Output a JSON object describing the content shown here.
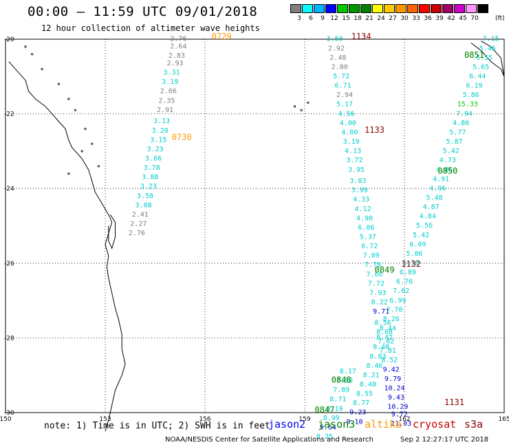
{
  "header": {
    "title": "00:00 – 11:59 UTC 09/01/2018",
    "subtitle": "12 hour collection of altimeter wave heights"
  },
  "legend": {
    "unit": "(ft)",
    "bins": [
      {
        "label": "3",
        "color": "#7f7f7f"
      },
      {
        "label": "6",
        "color": "#00ffff"
      },
      {
        "label": "9",
        "color": "#00b4ff"
      },
      {
        "label": "12",
        "color": "#0000ff"
      },
      {
        "label": "15",
        "color": "#00c800"
      },
      {
        "label": "18",
        "color": "#009600"
      },
      {
        "label": "21",
        "color": "#008000"
      },
      {
        "label": "24",
        "color": "#ffff00"
      },
      {
        "label": "27",
        "color": "#ffc800"
      },
      {
        "label": "30",
        "color": "#ff9600"
      },
      {
        "label": "33",
        "color": "#ff6400"
      },
      {
        "label": "36",
        "color": "#ff0000"
      },
      {
        "label": "39",
        "color": "#c80000"
      },
      {
        "label": "42",
        "color": "#a00064"
      },
      {
        "label": "45",
        "color": "#c800c8"
      },
      {
        "label": "70",
        "color": "#ff96ff"
      },
      {
        "label": "",
        "color": "#000000"
      }
    ]
  },
  "map": {
    "lon_ticks": [
      "150",
      "153",
      "156",
      "159",
      "162",
      "165"
    ],
    "lat_ticks": [
      "-20",
      "-22",
      "-24",
      "-26",
      "-28",
      "-30"
    ],
    "time_labels": [
      {
        "text": "0729",
        "lon": 156.5,
        "lat": -20.0,
        "color": "#ff9600"
      },
      {
        "text": "0730",
        "lon": 155.3,
        "lat": -22.7,
        "color": "#ff9600"
      },
      {
        "text": "1134",
        "lon": 160.7,
        "lat": -20.0,
        "color": "#8b0000"
      },
      {
        "text": "1133",
        "lon": 161.1,
        "lat": -22.5,
        "color": "#8b0000"
      },
      {
        "text": "1132",
        "lon": 162.2,
        "lat": -26.1,
        "color": "#8b0000"
      },
      {
        "text": "1131",
        "lon": 163.5,
        "lat": -29.8,
        "color": "#8b0000"
      },
      {
        "text": "0851",
        "lon": 164.1,
        "lat": -20.5,
        "color": "#008000"
      },
      {
        "text": "0850",
        "lon": 163.3,
        "lat": -23.6,
        "color": "#008000"
      },
      {
        "text": "0849",
        "lon": 161.4,
        "lat": -26.25,
        "color": "#008000"
      },
      {
        "text": "0848",
        "lon": 160.1,
        "lat": -29.2,
        "color": "#008000"
      },
      {
        "text": "0847",
        "lon": 159.6,
        "lat": -30.0,
        "color": "#008000"
      }
    ],
    "tracks": [
      {
        "satellite": "altika",
        "points": [
          {
            "lon": 155.2,
            "lat": -20.05,
            "v": "2.76",
            "c": "#7f7f7f"
          },
          {
            "lon": 155.2,
            "lat": -20.25,
            "v": "2.64",
            "c": "#7f7f7f"
          },
          {
            "lon": 155.15,
            "lat": -20.5,
            "v": "2.83",
            "c": "#7f7f7f"
          },
          {
            "lon": 155.1,
            "lat": -20.7,
            "v": "2.93",
            "c": "#7f7f7f"
          },
          {
            "lon": 155.0,
            "lat": -20.95,
            "v": "3.31",
            "c": "#00cccc"
          },
          {
            "lon": 154.95,
            "lat": -21.2,
            "v": "3.19",
            "c": "#00cccc"
          },
          {
            "lon": 154.9,
            "lat": -21.45,
            "v": "2.66",
            "c": "#7f7f7f"
          },
          {
            "lon": 154.85,
            "lat": -21.7,
            "v": "2.35",
            "c": "#7f7f7f"
          },
          {
            "lon": 154.8,
            "lat": -21.95,
            "v": "2.91",
            "c": "#7f7f7f"
          },
          {
            "lon": 154.7,
            "lat": -22.25,
            "v": "3.13",
            "c": "#00cccc"
          },
          {
            "lon": 154.65,
            "lat": -22.5,
            "v": "3.20",
            "c": "#00cccc"
          },
          {
            "lon": 154.6,
            "lat": -22.75,
            "v": "3.15",
            "c": "#00cccc"
          },
          {
            "lon": 154.5,
            "lat": -23.0,
            "v": "3.23",
            "c": "#00cccc"
          },
          {
            "lon": 154.45,
            "lat": -23.25,
            "v": "3.66",
            "c": "#00cccc"
          },
          {
            "lon": 154.4,
            "lat": -23.5,
            "v": "3.78",
            "c": "#00cccc"
          },
          {
            "lon": 154.35,
            "lat": -23.75,
            "v": "3.88",
            "c": "#00cccc"
          },
          {
            "lon": 154.3,
            "lat": -24.0,
            "v": "3.23",
            "c": "#00cccc"
          },
          {
            "lon": 154.2,
            "lat": -24.25,
            "v": "3.58",
            "c": "#00cccc"
          },
          {
            "lon": 154.15,
            "lat": -24.5,
            "v": "3.08",
            "c": "#00cccc"
          },
          {
            "lon": 154.05,
            "lat": -24.75,
            "v": "2.41",
            "c": "#7f7f7f"
          },
          {
            "lon": 154.0,
            "lat": -25.0,
            "v": "2.27",
            "c": "#7f7f7f"
          },
          {
            "lon": 153.95,
            "lat": -25.25,
            "v": "2.76",
            "c": "#7f7f7f"
          }
        ]
      },
      {
        "satellite": "cryosat",
        "points": [
          {
            "lon": 159.9,
            "lat": -20.05,
            "v": "3.50",
            "c": "#00cccc"
          },
          {
            "lon": 159.95,
            "lat": -20.3,
            "v": "2.92",
            "c": "#7f7f7f"
          },
          {
            "lon": 160.0,
            "lat": -20.55,
            "v": "2.48",
            "c": "#7f7f7f"
          },
          {
            "lon": 160.05,
            "lat": -20.8,
            "v": "2.80",
            "c": "#7f7f7f"
          },
          {
            "lon": 160.1,
            "lat": -21.05,
            "v": "5.72",
            "c": "#00cccc"
          },
          {
            "lon": 160.15,
            "lat": -21.3,
            "v": "6.71",
            "c": "#00cccc"
          },
          {
            "lon": 160.2,
            "lat": -21.55,
            "v": "2.94",
            "c": "#7f7f7f"
          },
          {
            "lon": 160.2,
            "lat": -21.8,
            "v": "5.17",
            "c": "#00cccc"
          },
          {
            "lon": 160.25,
            "lat": -22.05,
            "v": "4.56",
            "c": "#00cccc"
          },
          {
            "lon": 160.3,
            "lat": -22.3,
            "v": "4.00",
            "c": "#00cccc"
          },
          {
            "lon": 160.35,
            "lat": -22.55,
            "v": "4.00",
            "c": "#00cccc"
          },
          {
            "lon": 160.4,
            "lat": -22.8,
            "v": "3.19",
            "c": "#00cccc"
          },
          {
            "lon": 160.45,
            "lat": -23.05,
            "v": "4.13",
            "c": "#00cccc"
          },
          {
            "lon": 160.5,
            "lat": -23.3,
            "v": "3.72",
            "c": "#00cccc"
          },
          {
            "lon": 160.55,
            "lat": -23.55,
            "v": "3.95",
            "c": "#00cccc"
          },
          {
            "lon": 160.6,
            "lat": -23.85,
            "v": "3.83",
            "c": "#00cccc"
          },
          {
            "lon": 160.65,
            "lat": -24.1,
            "v": "3.99",
            "c": "#00cccc"
          },
          {
            "lon": 160.7,
            "lat": -24.35,
            "v": "4.33",
            "c": "#00cccc"
          },
          {
            "lon": 160.75,
            "lat": -24.6,
            "v": "4.12",
            "c": "#00cccc"
          },
          {
            "lon": 160.8,
            "lat": -24.85,
            "v": "4.90",
            "c": "#00cccc"
          },
          {
            "lon": 160.85,
            "lat": -25.1,
            "v": "6.06",
            "c": "#00cccc"
          },
          {
            "lon": 160.9,
            "lat": -25.35,
            "v": "5.37",
            "c": "#00cccc"
          },
          {
            "lon": 160.95,
            "lat": -25.6,
            "v": "6.72",
            "c": "#00cccc"
          },
          {
            "lon": 161.0,
            "lat": -25.85,
            "v": "7.09",
            "c": "#00cccc"
          },
          {
            "lon": 161.05,
            "lat": -26.1,
            "v": "7.78",
            "c": "#00cccc"
          },
          {
            "lon": 161.1,
            "lat": -26.35,
            "v": "7.66",
            "c": "#00cccc"
          },
          {
            "lon": 161.15,
            "lat": -26.6,
            "v": "7.72",
            "c": "#00cccc"
          },
          {
            "lon": 161.2,
            "lat": -26.85,
            "v": "7.93",
            "c": "#00cccc"
          },
          {
            "lon": 161.25,
            "lat": -27.1,
            "v": "8.22",
            "c": "#00cccc"
          },
          {
            "lon": 161.3,
            "lat": -27.35,
            "v": "9.71",
            "c": "#0000cc"
          },
          {
            "lon": 161.35,
            "lat": -27.65,
            "v": "8.56",
            "c": "#00cccc"
          },
          {
            "lon": 161.4,
            "lat": -27.9,
            "v": "8.08",
            "c": "#00cccc"
          },
          {
            "lon": 161.45,
            "lat": -28.15,
            "v": "7.62",
            "c": "#00cccc"
          },
          {
            "lon": 161.5,
            "lat": -28.4,
            "v": "7.81",
            "c": "#00cccc"
          },
          {
            "lon": 161.55,
            "lat": -28.65,
            "v": "8.52",
            "c": "#00cccc"
          },
          {
            "lon": 161.6,
            "lat": -28.9,
            "v": "9.42",
            "c": "#0000cc"
          },
          {
            "lon": 161.65,
            "lat": -29.15,
            "v": "9.79",
            "c": "#0000cc"
          },
          {
            "lon": 161.7,
            "lat": -29.4,
            "v": "10.24",
            "c": "#0000cc"
          },
          {
            "lon": 161.75,
            "lat": -29.65,
            "v": "9.43",
            "c": "#0000cc"
          },
          {
            "lon": 161.8,
            "lat": -29.9,
            "v": "10.29",
            "c": "#0000cc"
          },
          {
            "lon": 161.85,
            "lat": -30.1,
            "v": "9.72",
            "c": "#0000cc"
          },
          {
            "lon": 161.9,
            "lat": -30.35,
            "v": "11.03",
            "c": "#0000cc"
          }
        ]
      },
      {
        "satellite": "jason3",
        "points": [
          {
            "lon": 164.6,
            "lat": -20.05,
            "v": "7.15",
            "c": "#00cccc"
          },
          {
            "lon": 164.5,
            "lat": -20.3,
            "v": "5.46",
            "c": "#00cccc"
          },
          {
            "lon": 164.4,
            "lat": -20.55,
            "v": "5.55",
            "c": "#00cccc"
          },
          {
            "lon": 164.3,
            "lat": -20.8,
            "v": "5.65",
            "c": "#00cccc"
          },
          {
            "lon": 164.2,
            "lat": -21.05,
            "v": "6.44",
            "c": "#00cccc"
          },
          {
            "lon": 164.1,
            "lat": -21.3,
            "v": "6.19",
            "c": "#00cccc"
          },
          {
            "lon": 164.0,
            "lat": -21.55,
            "v": "5.86",
            "c": "#00cccc"
          },
          {
            "lon": 163.9,
            "lat": -21.8,
            "v": "15.33",
            "c": "#00c800"
          },
          {
            "lon": 163.8,
            "lat": -22.05,
            "v": "7.94",
            "c": "#00cccc"
          },
          {
            "lon": 163.7,
            "lat": -22.3,
            "v": "4.80",
            "c": "#00cccc"
          },
          {
            "lon": 163.6,
            "lat": -22.55,
            "v": "5.77",
            "c": "#00cccc"
          },
          {
            "lon": 163.5,
            "lat": -22.8,
            "v": "5.87",
            "c": "#00cccc"
          },
          {
            "lon": 163.4,
            "lat": -23.05,
            "v": "5.42",
            "c": "#00cccc"
          },
          {
            "lon": 163.3,
            "lat": -23.3,
            "v": "4.73",
            "c": "#00cccc"
          },
          {
            "lon": 163.2,
            "lat": -23.55,
            "v": "4.86",
            "c": "#00cccc"
          },
          {
            "lon": 163.1,
            "lat": -23.8,
            "v": "4.91",
            "c": "#00cccc"
          },
          {
            "lon": 163.0,
            "lat": -24.05,
            "v": "4.96",
            "c": "#00cccc"
          },
          {
            "lon": 162.9,
            "lat": -24.3,
            "v": "5.48",
            "c": "#00cccc"
          },
          {
            "lon": 162.8,
            "lat": -24.55,
            "v": "4.87",
            "c": "#00cccc"
          },
          {
            "lon": 162.7,
            "lat": -24.8,
            "v": "4.84",
            "c": "#00cccc"
          },
          {
            "lon": 162.6,
            "lat": -25.05,
            "v": "5.56",
            "c": "#00cccc"
          },
          {
            "lon": 162.5,
            "lat": -25.3,
            "v": "5.42",
            "c": "#00cccc"
          },
          {
            "lon": 162.4,
            "lat": -25.55,
            "v": "6.09",
            "c": "#00cccc"
          },
          {
            "lon": 162.3,
            "lat": -25.8,
            "v": "5.06",
            "c": "#00cccc"
          },
          {
            "lon": 162.2,
            "lat": -26.05,
            "v": "5.59",
            "c": "#00cccc"
          },
          {
            "lon": 162.1,
            "lat": -26.3,
            "v": "6.89",
            "c": "#00cccc"
          },
          {
            "lon": 162.0,
            "lat": -26.55,
            "v": "6.76",
            "c": "#00cccc"
          },
          {
            "lon": 161.9,
            "lat": -26.8,
            "v": "7.62",
            "c": "#00cccc"
          },
          {
            "lon": 161.8,
            "lat": -27.05,
            "v": "6.99",
            "c": "#00cccc"
          },
          {
            "lon": 161.7,
            "lat": -27.3,
            "v": "7.70",
            "c": "#00cccc"
          },
          {
            "lon": 161.6,
            "lat": -27.55,
            "v": "8.26",
            "c": "#00cccc"
          },
          {
            "lon": 161.5,
            "lat": -27.8,
            "v": "8.44",
            "c": "#00cccc"
          },
          {
            "lon": 161.4,
            "lat": -28.05,
            "v": "8.42",
            "c": "#00cccc"
          },
          {
            "lon": 161.3,
            "lat": -28.3,
            "v": "8.48",
            "c": "#00cccc"
          },
          {
            "lon": 161.2,
            "lat": -28.55,
            "v": "8.83",
            "c": "#00cccc"
          },
          {
            "lon": 161.1,
            "lat": -28.8,
            "v": "8.46",
            "c": "#00cccc"
          },
          {
            "lon": 161.0,
            "lat": -29.05,
            "v": "8.21",
            "c": "#00cccc"
          },
          {
            "lon": 160.9,
            "lat": -29.3,
            "v": "8.40",
            "c": "#00cccc"
          },
          {
            "lon": 160.8,
            "lat": -29.55,
            "v": "8.55",
            "c": "#00cccc"
          },
          {
            "lon": 160.7,
            "lat": -29.8,
            "v": "8.77",
            "c": "#00cccc"
          },
          {
            "lon": 160.6,
            "lat": -30.05,
            "v": "9.23",
            "c": "#0000cc"
          },
          {
            "lon": 160.5,
            "lat": -30.3,
            "v": "9.10",
            "c": "#0000cc"
          }
        ]
      },
      {
        "satellite": "jason3-south",
        "points": [
          {
            "lon": 160.3,
            "lat": -28.95,
            "v": "8.17",
            "c": "#00cccc"
          },
          {
            "lon": 160.2,
            "lat": -29.2,
            "v": "7.58",
            "c": "#00cccc"
          },
          {
            "lon": 160.1,
            "lat": -29.45,
            "v": "7.89",
            "c": "#00cccc"
          },
          {
            "lon": 160.0,
            "lat": -29.7,
            "v": "8.71",
            "c": "#00cccc"
          },
          {
            "lon": 159.9,
            "lat": -29.95,
            "v": "8.19",
            "c": "#00cccc"
          },
          {
            "lon": 159.8,
            "lat": -30.2,
            "v": "8.99",
            "c": "#00cccc"
          },
          {
            "lon": 159.7,
            "lat": -30.45,
            "v": "9.64",
            "c": "#0000cc"
          },
          {
            "lon": 159.6,
            "lat": -30.7,
            "v": "8.25",
            "c": "#00cccc"
          }
        ]
      }
    ]
  },
  "footer": {
    "note": "note: 1) Time is in UTC; 2) SWH is in feet",
    "satellites": [
      {
        "name": "jason2",
        "color": "#0000ff"
      },
      {
        "name": "jason3",
        "color": "#008000"
      },
      {
        "name": "altika",
        "color": "#ff9600"
      },
      {
        "name": "cryosat",
        "color": "#c80000"
      },
      {
        "name": "s3a",
        "color": "#8b0000"
      }
    ],
    "credit": "NOAA/NESDIS Center for Satellite Applications and Research",
    "stamp": "Sep  2 12:27:17 UTC 2018"
  }
}
